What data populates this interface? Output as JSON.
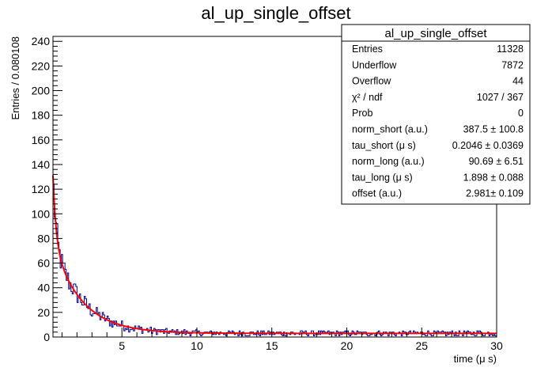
{
  "chart_data": {
    "type": "histogram",
    "title": "al_up_single_offset",
    "xlabel": "time (μ s)",
    "ylabel": "Entries / 0.080108",
    "xlim": [
      0.4,
      30
    ],
    "ylim": [
      0,
      244
    ],
    "x_ticks": [
      5,
      10,
      15,
      20,
      25,
      30
    ],
    "y_ticks": [
      0,
      20,
      40,
      60,
      80,
      100,
      120,
      140,
      160,
      180,
      200,
      220,
      240
    ],
    "bin_width": 0.080108,
    "histogram_color": "#00008b",
    "fit_color": "#ff0000",
    "fit_function": "norm_short*exp(-t/tau_short) + norm_long*exp(-t/tau_long) + offset",
    "fit_params": {
      "norm_short": 387.5,
      "tau_short": 0.2046,
      "norm_long": 90.69,
      "tau_long": 1.898,
      "offset": 2.981
    },
    "stats_box": {
      "title": "al_up_single_offset",
      "rows": [
        {
          "label": "Entries",
          "value": "11328"
        },
        {
          "label": "Underflow",
          "value": "7872"
        },
        {
          "label": "Overflow",
          "value": "44"
        },
        {
          "label": "χ² / ndf",
          "value": "1027 / 367"
        },
        {
          "label": "Prob",
          "value": "0"
        },
        {
          "label": "norm_short (a.u.)",
          "value": "387.5 ± 100.8"
        },
        {
          "label": "tau_short (μ s)",
          "value": "0.2046 ± 0.0369"
        },
        {
          "label": "norm_long (a.u.)",
          "value": "90.69 ± 6.51"
        },
        {
          "label": "tau_long (μ s)",
          "value": "1.898 ± 0.088"
        },
        {
          "label": "offset (a.u.)",
          "value": "2.981± 0.109"
        }
      ]
    }
  }
}
